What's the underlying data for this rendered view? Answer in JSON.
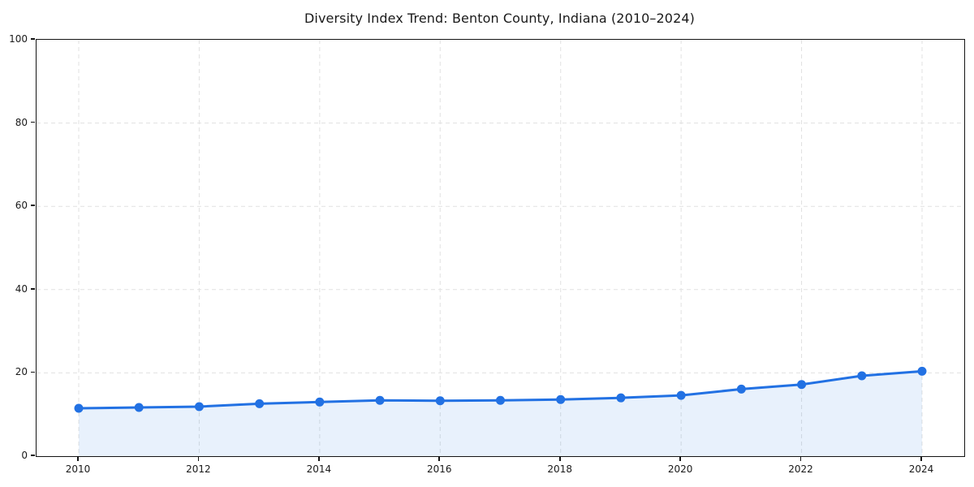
{
  "chart_data": {
    "type": "line",
    "title": "Diversity Index Trend: Benton County, Indiana (2010–2024)",
    "series_name": "Diversity Index",
    "x": [
      2010,
      2011,
      2012,
      2013,
      2014,
      2015,
      2016,
      2017,
      2018,
      2019,
      2020,
      2021,
      2022,
      2023,
      2024
    ],
    "values": [
      11.5,
      11.7,
      11.9,
      12.6,
      13.0,
      13.4,
      13.3,
      13.4,
      13.6,
      14.0,
      14.6,
      16.1,
      17.2,
      19.3,
      20.4
    ],
    "xlabel": "",
    "ylabel": "",
    "xlim": [
      2010,
      2024
    ],
    "ylim": [
      0,
      100
    ],
    "x_ticks": [
      "2010",
      "2012",
      "2014",
      "2016",
      "2018",
      "2020",
      "2022",
      "2024"
    ],
    "x_tick_years": [
      2010,
      2012,
      2014,
      2016,
      2018,
      2020,
      2022,
      2024
    ],
    "y_ticks": [
      "0",
      "20",
      "40",
      "60",
      "80",
      "100"
    ],
    "y_tick_values": [
      0,
      20,
      40,
      60,
      80,
      100
    ],
    "grid": "dashed",
    "legend_position": "none",
    "marker": "circle",
    "area_fill": true,
    "colors": {
      "line": "#2271e3",
      "marker": "#2271e3",
      "fill": "rgba(34, 113, 227, 0.10)",
      "grid": "#e1e1e1",
      "axis": "#141414",
      "text": "#1a1a1a",
      "background": "#ffffff"
    }
  }
}
